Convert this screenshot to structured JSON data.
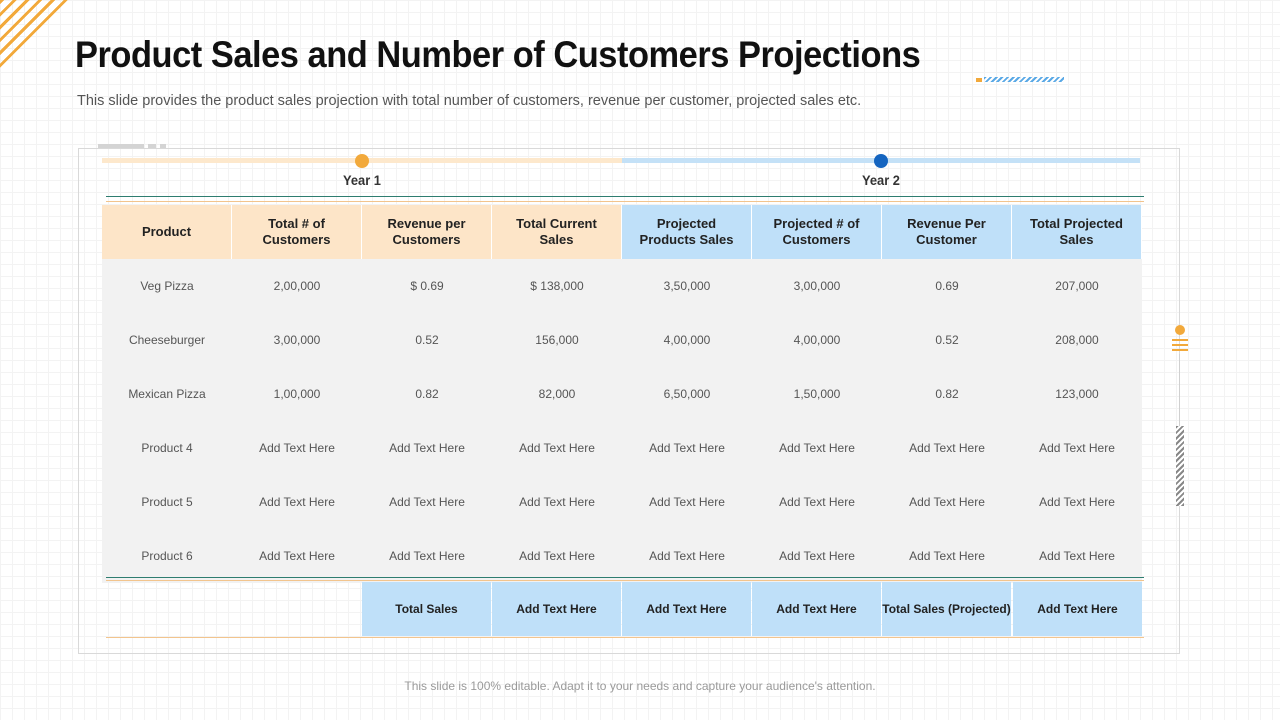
{
  "title": "Product Sales and Number of Customers Projections",
  "subtitle": "This slide provides the product sales projection with total number of customers, revenue per customer, projected sales etc.",
  "timeline": {
    "year1": "Year 1",
    "year2": "Year 2"
  },
  "colors": {
    "accent_orange": "#f2a93b",
    "accent_blue": "#1565c0",
    "year1_header": "#fde5c8",
    "year2_header": "#bfe0f9",
    "row_bg": "#f2f2f2"
  },
  "table": {
    "headers": [
      "Product",
      "Total # of Customers",
      "Revenue per Customers",
      "Total Current Sales",
      "Projected Products Sales",
      "Projected # of Customers",
      "Revenue Per Customer",
      "Total Projected Sales"
    ],
    "rows": [
      [
        "Veg Pizza",
        "2,00,000",
        "$ 0.69",
        "$ 138,000",
        "3,50,000",
        "3,00,000",
        "0.69",
        "207,000"
      ],
      [
        "Cheeseburger",
        "3,00,000",
        "0.52",
        "156,000",
        "4,00,000",
        "4,00,000",
        "0.52",
        "208,000"
      ],
      [
        "Mexican Pizza",
        "1,00,000",
        "0.82",
        "82,000",
        "6,50,000",
        "1,50,000",
        "0.82",
        "123,000"
      ],
      [
        "Product 4",
        "Add Text Here",
        "Add Text Here",
        "Add Text Here",
        "Add Text Here",
        "Add Text Here",
        "Add Text Here",
        "Add Text Here"
      ],
      [
        "Product 5",
        "Add Text Here",
        "Add Text Here",
        "Add Text Here",
        "Add Text Here",
        "Add Text Here",
        "Add Text Here",
        "Add Text Here"
      ],
      [
        "Product 6",
        "Add Text Here",
        "Add Text Here",
        "Add Text Here",
        "Add Text Here",
        "Add Text Here",
        "Add Text Here",
        "Add Text Here"
      ]
    ],
    "totals": [
      "Total Sales",
      "Add Text Here",
      "Add Text Here",
      "Add Text Here",
      "Total Sales (Projected)",
      "Add Text Here"
    ]
  },
  "footer": "This slide is 100% editable. Adapt it to your needs and capture your audience's attention."
}
